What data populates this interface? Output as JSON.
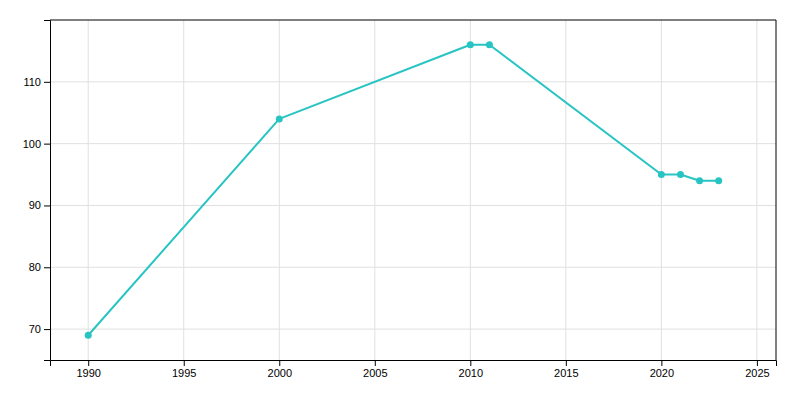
{
  "chart_data": {
    "type": "line",
    "x": [
      1990,
      2000,
      2010,
      2011,
      2020,
      2021,
      2022,
      2023
    ],
    "values": [
      69,
      104,
      116,
      116,
      95,
      95,
      94,
      94
    ],
    "color": "#28c4c4",
    "marker": "circle",
    "xlim": [
      1988,
      2026
    ],
    "ylim": [
      65,
      120
    ],
    "xticks": [
      1990,
      1995,
      2000,
      2005,
      2010,
      2015,
      2020,
      2025
    ],
    "yticks": [
      70,
      80,
      90,
      100,
      110
    ],
    "grid": true
  }
}
